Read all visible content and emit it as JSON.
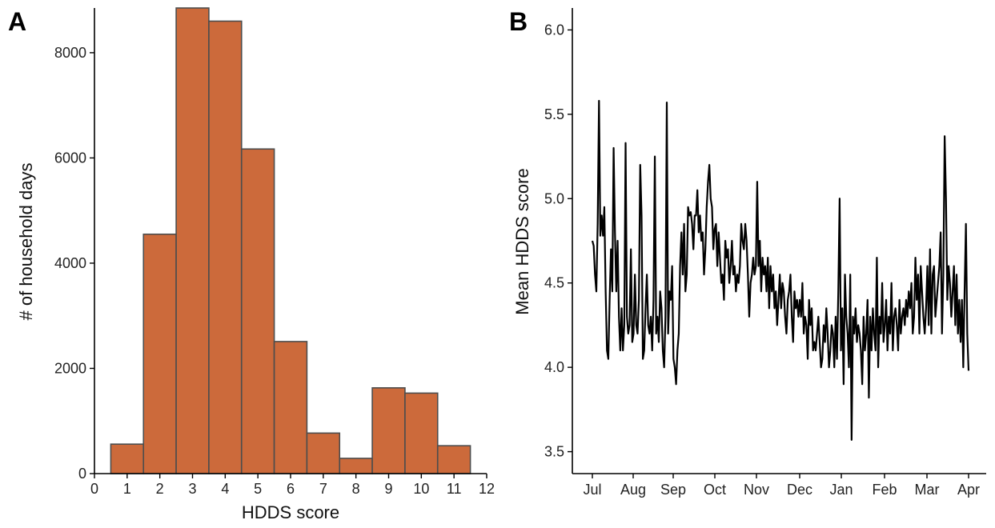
{
  "chart_data": [
    {
      "type": "bar",
      "panel_label": "A",
      "xlabel": "HDDS score",
      "ylabel": "# of household days",
      "xlim": [
        0,
        12
      ],
      "ylim": [
        0,
        8850
      ],
      "x_ticks": [
        0,
        1,
        2,
        3,
        4,
        5,
        6,
        7,
        8,
        9,
        10,
        11,
        12
      ],
      "y_ticks": [
        0,
        2000,
        4000,
        6000,
        8000
      ],
      "bar_color": "#cc6a3b",
      "categories": [
        1,
        2,
        3,
        4,
        5,
        6,
        7,
        8,
        9,
        10,
        11
      ],
      "values": [
        560,
        4550,
        8850,
        8600,
        6170,
        2510,
        770,
        290,
        1630,
        1530,
        530
      ]
    },
    {
      "type": "line",
      "panel_label": "B",
      "xlabel": "",
      "ylabel": "Mean HDDS score",
      "ylim": [
        3.37,
        6.13
      ],
      "y_ticks": [
        3.5,
        4.0,
        4.5,
        5.0,
        5.5,
        6.0
      ],
      "x_ticks": [
        "Jul",
        "Aug",
        "Sep",
        "Oct",
        "Nov",
        "Dec",
        "Jan",
        "Feb",
        "Mar",
        "Apr"
      ],
      "x_start": "Jul",
      "x_end": "Apr",
      "line_color": "#000000",
      "series": [
        {
          "values": [
            4.75,
            4.72,
            4.55,
            4.45,
            4.85,
            5.58,
            4.78,
            4.9,
            4.78,
            4.95,
            4.45,
            4.1,
            4.05,
            4.4,
            4.7,
            4.45,
            5.3,
            4.8,
            4.45,
            4.75,
            4.3,
            4.1,
            4.35,
            4.1,
            4.25,
            5.33,
            4.3,
            4.2,
            4.25,
            4.7,
            4.15,
            4.2,
            4.55,
            4.25,
            4.2,
            4.4,
            5.2,
            4.9,
            4.05,
            4.1,
            4.35,
            4.55,
            4.25,
            4.2,
            4.3,
            4.1,
            4.4,
            5.25,
            4.2,
            4.3,
            4.15,
            4.45,
            4.35,
            4.1,
            4.0,
            4.3,
            5.57,
            4.2,
            4.45,
            4.4,
            4.6,
            4.05,
            4.0,
            3.9,
            4.1,
            4.2,
            4.6,
            4.8,
            4.55,
            4.85,
            4.45,
            4.55,
            4.95,
            4.9,
            4.92,
            4.85,
            4.7,
            4.9,
            4.9,
            5.05,
            4.8,
            4.9,
            4.75,
            4.8,
            4.55,
            4.7,
            4.95,
            5.1,
            5.2,
            5.0,
            4.95,
            4.7,
            4.82,
            4.85,
            4.6,
            4.8,
            4.65,
            4.5,
            4.55,
            4.4,
            4.75,
            4.65,
            4.7,
            4.5,
            4.6,
            4.75,
            4.55,
            4.6,
            4.45,
            4.55,
            4.5,
            4.6,
            4.85,
            4.75,
            4.7,
            4.85,
            4.75,
            4.55,
            4.3,
            4.5,
            4.55,
            4.65,
            4.55,
            4.6,
            5.1,
            4.6,
            4.75,
            4.45,
            4.65,
            4.55,
            4.6,
            4.45,
            4.65,
            4.35,
            4.6,
            4.45,
            4.55,
            4.35,
            4.45,
            4.25,
            4.4,
            4.55,
            4.35,
            4.5,
            4.45,
            4.3,
            4.2,
            4.4,
            4.45,
            4.55,
            4.3,
            4.15,
            4.45,
            4.35,
            4.4,
            4.3,
            4.4,
            4.3,
            4.5,
            4.2,
            4.3,
            4.25,
            4.05,
            4.4,
            4.25,
            4.35,
            4.1,
            4.15,
            4.1,
            4.2,
            4.3,
            4.15,
            4.0,
            4.05,
            4.25,
            4.15,
            4.35,
            4.2,
            4.0,
            4.1,
            4.25,
            4.2,
            4.0,
            4.3,
            4.05,
            4.45,
            5.0,
            4.1,
            4.35,
            3.9,
            4.55,
            4.3,
            4.2,
            4.0,
            4.55,
            3.57,
            4.3,
            4.2,
            4.35,
            4.15,
            4.25,
            4.2,
            4.1,
            3.9,
            4.3,
            4.1,
            4.2,
            4.4,
            3.82,
            4.3,
            4.1,
            4.35,
            4.2,
            4.1,
            4.65,
            4.0,
            4.3,
            4.2,
            4.5,
            4.15,
            4.25,
            4.4,
            4.1,
            4.3,
            4.2,
            4.5,
            4.1,
            4.3,
            4.35,
            4.25,
            4.1,
            4.4,
            4.2,
            4.3,
            4.35,
            4.25,
            4.4,
            4.3,
            4.45,
            4.35,
            4.5,
            4.2,
            4.3,
            4.65,
            4.4,
            4.55,
            4.2,
            4.6,
            4.45,
            4.3,
            4.2,
            4.35,
            4.6,
            4.25,
            4.7,
            4.2,
            4.55,
            4.6,
            4.3,
            4.4,
            4.5,
            4.6,
            4.8,
            4.2,
            4.55,
            5.37,
            5.0,
            4.4,
            4.6,
            4.5,
            4.3,
            4.45,
            4.6,
            4.25,
            4.55,
            4.2,
            4.4,
            4.15,
            4.4,
            4.0,
            4.45,
            4.85,
            4.2,
            3.98
          ]
        }
      ]
    }
  ]
}
